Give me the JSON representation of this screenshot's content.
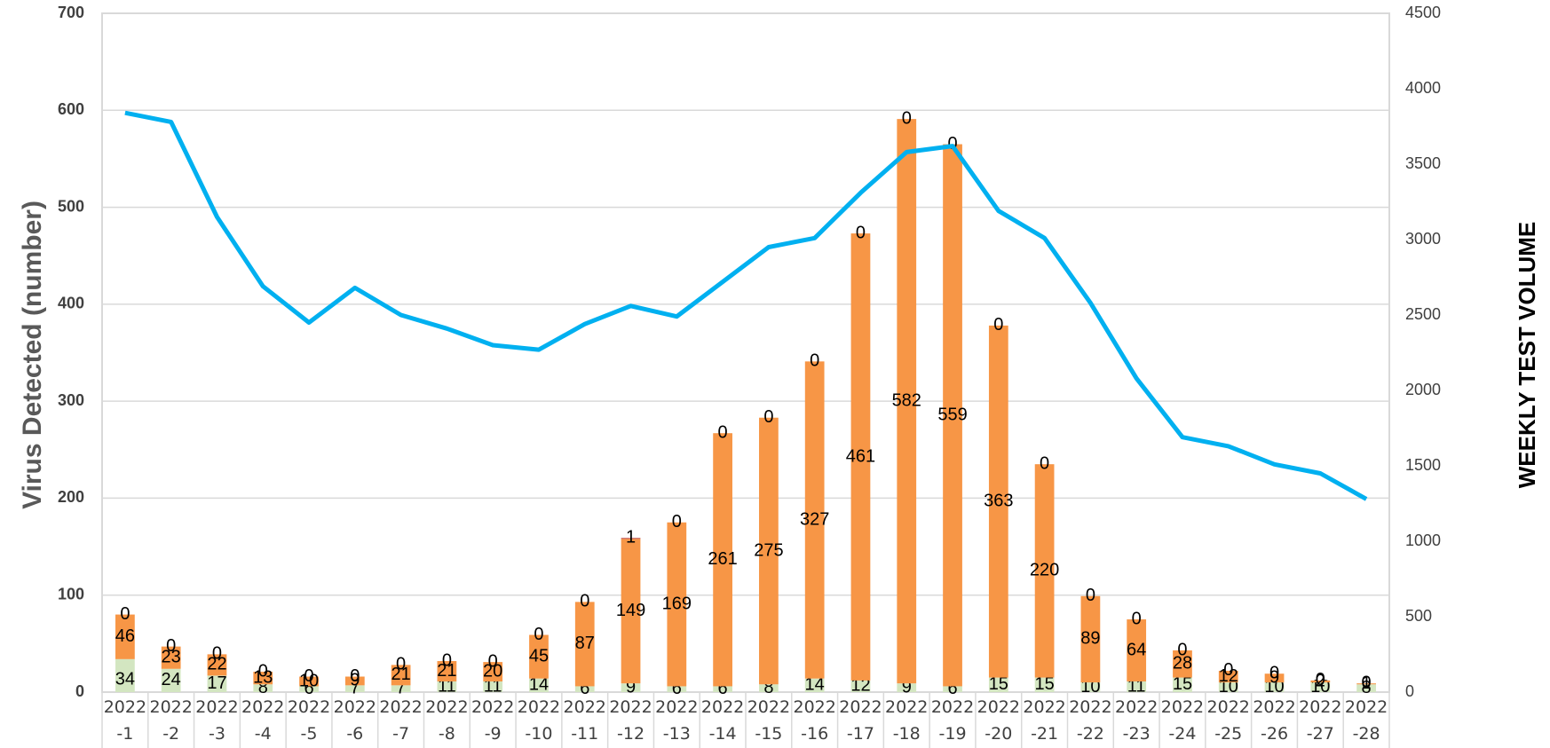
{
  "chart_data": {
    "type": "bar",
    "y_label": "Virus Detected (number)",
    "y2_label": "WEEKLY TEST VOLUME",
    "categories": [
      "2022-1",
      "2022-2",
      "2022-3",
      "2022-4",
      "2022-5",
      "2022-6",
      "2022-7",
      "2022-8",
      "2022-9",
      "2022-10",
      "2022-11",
      "2022-12",
      "2022-13",
      "2022-14",
      "2022-15",
      "2022-16",
      "2022-17",
      "2022-18",
      "2022-19",
      "2022-20",
      "2022-21",
      "2022-22",
      "2022-23",
      "2022-24",
      "2022-25",
      "2022-26",
      "2022-27",
      "2022-28"
    ],
    "series": [
      {
        "color": "#d3e6c1",
        "values": [
          34,
          24,
          17,
          8,
          6,
          7,
          7,
          11,
          11,
          14,
          6,
          9,
          6,
          6,
          8,
          14,
          12,
          9,
          6,
          15,
          15,
          10,
          11,
          15,
          10,
          10,
          10,
          8
        ]
      },
      {
        "color": "#f79646",
        "values": [
          46,
          23,
          22,
          13,
          10,
          9,
          21,
          21,
          20,
          45,
          87,
          149,
          169,
          261,
          275,
          327,
          461,
          582,
          559,
          363,
          220,
          89,
          64,
          28,
          12,
          9,
          2,
          1
        ]
      },
      {
        "color": "#c0504d",
        "values": [
          0,
          0,
          0,
          0,
          0,
          0,
          0,
          0,
          0,
          0,
          0,
          1,
          0,
          0,
          0,
          0,
          0,
          0,
          0,
          0,
          0,
          0,
          0,
          0,
          0,
          0,
          0,
          0
        ]
      },
      {
        "type": "line",
        "axis": "y2",
        "color": "#00b0f0",
        "values": [
          3840,
          3780,
          3150,
          2690,
          2450,
          2680,
          2500,
          2410,
          2300,
          2270,
          2440,
          2560,
          2490,
          2720,
          2950,
          3010,
          3310,
          3580,
          3620,
          3190,
          3010,
          2580,
          2080,
          1690,
          1630,
          1510,
          1450,
          1280
        ]
      }
    ],
    "ylim": [
      0,
      700
    ],
    "yticks": [
      0,
      100,
      200,
      300,
      400,
      500,
      600,
      700
    ],
    "y2lim": [
      0,
      4500
    ],
    "y2ticks": [
      0,
      500,
      1000,
      1500,
      2000,
      2500,
      3000,
      3500,
      4000,
      4500
    ],
    "grid": true
  }
}
